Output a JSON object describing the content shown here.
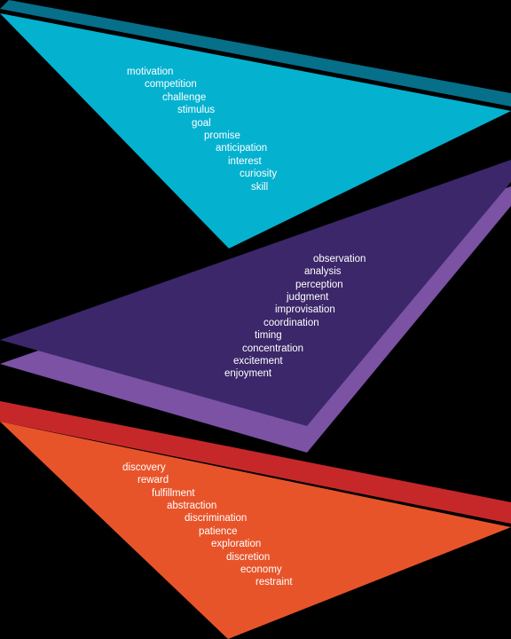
{
  "colors": {
    "background": "#000000",
    "text": "#ffffff",
    "top_front": "#04b2d0",
    "top_back": "#066f8a",
    "middle_front": "#3b2769",
    "middle_back": "#7b52a4",
    "bottom_front": "#e8542a",
    "bottom_back": "#c6282a"
  },
  "groups": [
    {
      "id": "top",
      "words": [
        "motivation",
        "competition",
        "challenge",
        "stimulus",
        "goal",
        "promise",
        "anticipation",
        "interest",
        "curiosity",
        "skill"
      ]
    },
    {
      "id": "middle",
      "words": [
        "observation",
        "analysis",
        "perception",
        "judgment",
        "improvisation",
        "coordination",
        "timing",
        "concentration",
        "excitement",
        "enjoyment"
      ]
    },
    {
      "id": "bottom",
      "words": [
        "discovery",
        "reward",
        "fulfillment",
        "abstraction",
        "discrimination",
        "patience",
        "exploration",
        "discretion",
        "economy",
        "restraint"
      ]
    }
  ]
}
